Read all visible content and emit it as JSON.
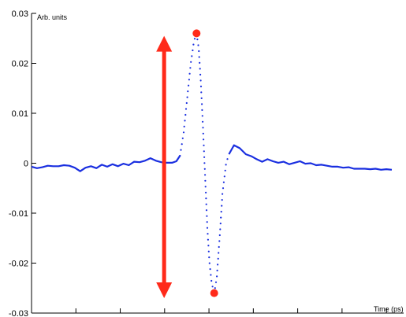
{
  "chart_data": {
    "type": "line",
    "title": "",
    "ylabel": "Arb. units",
    "xlabel": "Time (ps)",
    "ylim": [
      -0.03,
      0.03
    ],
    "yticks": [
      {
        "value": 0.03,
        "label": "0.03"
      },
      {
        "value": 0.02,
        "label": "0.02"
      },
      {
        "value": 0.01,
        "label": "0.01"
      },
      {
        "value": 0,
        "label": "0"
      },
      {
        "value": -0.01,
        "label": "-0.01"
      },
      {
        "value": -0.02,
        "label": "-0.02"
      },
      {
        "value": -0.03,
        "label": "-0.03"
      }
    ],
    "xlim": [
      0,
      10
    ],
    "xticks_count": 8,
    "grid": false,
    "colors": {
      "line": "#1a2fe0",
      "marker": "#ff2a1a",
      "arrow": "#ff2a1a"
    },
    "series": [
      {
        "style": "solid",
        "points": [
          [
            0.0,
            -0.0007
          ],
          [
            0.15,
            -0.001
          ],
          [
            0.3,
            -0.0008
          ],
          [
            0.45,
            -0.0005
          ],
          [
            0.6,
            -0.0006
          ],
          [
            0.75,
            -0.0006
          ],
          [
            0.9,
            -0.0004
          ],
          [
            1.05,
            -0.0005
          ],
          [
            1.2,
            -0.0009
          ],
          [
            1.35,
            -0.0016
          ],
          [
            1.5,
            -0.0009
          ],
          [
            1.65,
            -0.0006
          ],
          [
            1.8,
            -0.001
          ],
          [
            1.95,
            -0.0003
          ],
          [
            2.1,
            -0.0007
          ],
          [
            2.25,
            -0.0002
          ],
          [
            2.4,
            -0.0006
          ],
          [
            2.55,
            -0.0001
          ],
          [
            2.7,
            -0.0004
          ],
          [
            2.85,
            0.0003
          ],
          [
            3.0,
            0.0002
          ],
          [
            3.15,
            0.0005
          ],
          [
            3.3,
            0.001
          ],
          [
            3.45,
            0.0005
          ],
          [
            3.6,
            0.0002
          ],
          [
            3.75,
            0.0001
          ],
          [
            3.9,
            0.0001
          ],
          [
            4.02,
            0.0004
          ],
          [
            4.12,
            0.0015
          ]
        ]
      },
      {
        "style": "dotted",
        "points": [
          [
            4.12,
            0.0015
          ],
          [
            4.22,
            0.006
          ],
          [
            4.32,
            0.013
          ],
          [
            4.42,
            0.02
          ],
          [
            4.51,
            0.0245
          ],
          [
            4.58,
            0.026
          ],
          [
            4.64,
            0.023
          ],
          [
            4.7,
            0.016
          ],
          [
            4.76,
            0.007
          ],
          [
            4.82,
            -0.003
          ],
          [
            4.88,
            -0.013
          ],
          [
            4.94,
            -0.02
          ],
          [
            5.0,
            -0.024
          ],
          [
            5.07,
            -0.026
          ],
          [
            5.14,
            -0.023
          ],
          [
            5.22,
            -0.015
          ],
          [
            5.3,
            -0.006
          ],
          [
            5.4,
            0.0
          ],
          [
            5.48,
            0.0018
          ]
        ]
      },
      {
        "style": "solid",
        "points": [
          [
            5.48,
            0.0018
          ],
          [
            5.62,
            0.0036
          ],
          [
            5.78,
            0.003
          ],
          [
            5.95,
            0.0018
          ],
          [
            6.1,
            0.0014
          ],
          [
            6.25,
            0.0008
          ],
          [
            6.4,
            0.0003
          ],
          [
            6.55,
            0.0008
          ],
          [
            6.7,
            0.0004
          ],
          [
            6.85,
            0.0001
          ],
          [
            7.0,
            0.0003
          ],
          [
            7.15,
            -0.0002
          ],
          [
            7.3,
            0.0001
          ],
          [
            7.45,
            0.0004
          ],
          [
            7.6,
            -0.0001
          ],
          [
            7.75,
            0.0
          ],
          [
            7.9,
            -0.0004
          ],
          [
            8.05,
            -0.0003
          ],
          [
            8.2,
            -0.0005
          ],
          [
            8.35,
            -0.0007
          ],
          [
            8.5,
            -0.0007
          ],
          [
            8.65,
            -0.0009
          ],
          [
            8.8,
            -0.0008
          ],
          [
            8.95,
            -0.0011
          ],
          [
            9.1,
            -0.0011
          ],
          [
            9.25,
            -0.0011
          ],
          [
            9.4,
            -0.0012
          ],
          [
            9.55,
            -0.0011
          ],
          [
            9.7,
            -0.0013
          ],
          [
            9.85,
            -0.0012
          ],
          [
            10.0,
            -0.0013
          ]
        ]
      }
    ],
    "markers": [
      {
        "x": 4.58,
        "y": 0.026
      },
      {
        "x": 5.07,
        "y": -0.026
      }
    ],
    "arrow": {
      "x": 3.68,
      "y_top": 0.0255,
      "y_bottom": -0.027
    }
  }
}
